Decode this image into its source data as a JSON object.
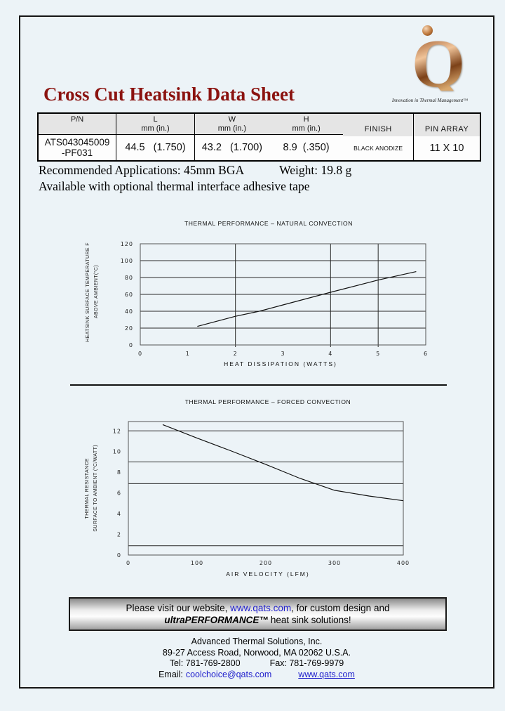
{
  "page": {
    "title": "Cross Cut Heatsink Data Sheet"
  },
  "logo": {
    "letter": "Q",
    "tagline": "Innovation in Thermal Management™"
  },
  "spec_table": {
    "headers": {
      "pn": "P/N",
      "l": "L",
      "w": "W",
      "h": "H",
      "finish": "FINISH",
      "pin_array": "PIN ARRAY",
      "unit_label": "mm (in.)"
    },
    "row": {
      "pn_line1": "ATS043045009",
      "pn_line2": "-PF031",
      "l": "44.5   (1.750)",
      "w": "43.2   (1.700)",
      "h": "8.9  (.350)",
      "finish": "BLACK ANODIZE",
      "pin_array": "11 X 10"
    }
  },
  "details": {
    "applications": "Recommended Applications: 45mm BGA",
    "weight": "Weight: 19.8 g",
    "tape_note": "Available with optional thermal interface adhesive tape"
  },
  "chart_data": [
    {
      "type": "line",
      "title": "THERMAL PERFORMANCE – NATURAL CONVECTION",
      "xlabel": "HEAT DISSIPATION (WATTS)",
      "ylabel_lines": [
        "HEATSINK SURFACE TEMPERATURE F",
        "ABOVE AMBIENT(°C)"
      ],
      "xlim": [
        0,
        6
      ],
      "ylim": [
        0,
        120
      ],
      "xticks": [
        0,
        1,
        2,
        3,
        4,
        5,
        6
      ],
      "yticks": [
        0,
        20,
        40,
        60,
        80,
        100,
        120
      ],
      "v_gridlines": [
        2,
        4,
        5
      ],
      "h_gridlines": [
        20,
        40,
        60,
        80,
        100
      ],
      "grid": true,
      "legend": false,
      "points": [
        [
          1.2,
          22
        ],
        [
          2,
          34
        ],
        [
          2.5,
          40
        ],
        [
          3,
          47.5
        ],
        [
          4,
          62.5
        ],
        [
          5,
          77
        ],
        [
          5.8,
          87
        ]
      ]
    },
    {
      "type": "line",
      "title": "THERMAL PERFORMANCE – FORCED CONVECTION",
      "xlabel": "AIR VELOCITY (LFM)",
      "ylabel_lines": [
        "THERMAL RESISTANCE",
        "SURFACE TO AMBIENT (°C/WATT)"
      ],
      "xlim": [
        0,
        400
      ],
      "ylim": [
        0,
        12.9
      ],
      "xticks": [
        0,
        100,
        200,
        300,
        400
      ],
      "yticks": [
        0,
        2,
        4,
        6,
        8,
        10,
        12
      ],
      "v_gridlines": [],
      "h_gridlines": [
        0.9,
        6.9,
        9,
        12
      ],
      "grid": true,
      "legend": false,
      "points": [
        [
          50,
          12.6
        ],
        [
          100,
          11.3
        ],
        [
          150,
          10.05
        ],
        [
          200,
          8.75
        ],
        [
          250,
          7.4
        ],
        [
          300,
          6.25
        ],
        [
          350,
          5.7
        ],
        [
          400,
          5.25
        ]
      ]
    }
  ],
  "banner": {
    "line1_prefix": "Please visit our website, ",
    "link": "www.qats.com",
    "line1_suffix": ", for custom design and",
    "line2_brand": "ultraPERFORMANCE™",
    "line2_suffix": "heat sink solutions!"
  },
  "footer": {
    "company": "Advanced Thermal Solutions, Inc.",
    "address": "89-27 Access Road, Norwood, MA 02062 U.S.A.",
    "tel": "Tel:  781-769-2800",
    "fax": "Fax: 781-769-9979",
    "email_label": "Email:",
    "email": "coolchoice@qats.com",
    "website": "www.qats.com"
  },
  "colors": {
    "accent_red": "#8b1310",
    "link_blue": "#2020cc",
    "page_bg": "#ecf3f7",
    "logo_copper": "#b87333"
  }
}
